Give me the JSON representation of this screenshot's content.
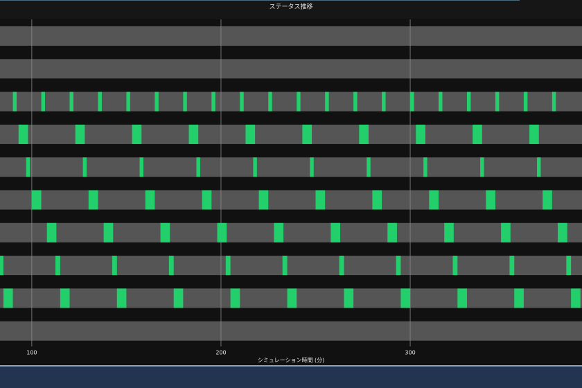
{
  "chart_data": {
    "type": "gantt",
    "title": "ステータス推移",
    "x_label": "シミュレーション時間 (分)",
    "xlim": [
      83.2,
      390.8
    ],
    "xticks": [
      100,
      200,
      300
    ],
    "grid": true,
    "bar_color": "#555555",
    "color": "#22cf6b",
    "rows": [
      {
        "segments": []
      },
      {
        "segments": []
      },
      {
        "segments": [
          [
            90,
            92
          ],
          [
            105,
            107
          ],
          [
            120,
            122
          ],
          [
            135,
            137
          ],
          [
            150,
            152
          ],
          [
            165,
            167
          ],
          [
            180,
            182
          ],
          [
            195,
            197
          ],
          [
            210,
            212
          ],
          [
            225,
            227
          ],
          [
            240,
            242
          ],
          [
            255,
            257
          ],
          [
            270,
            272
          ],
          [
            285,
            287
          ],
          [
            300,
            302
          ],
          [
            315,
            317
          ],
          [
            330,
            332
          ],
          [
            345,
            347
          ],
          [
            360,
            362
          ],
          [
            375,
            377
          ]
        ]
      },
      {
        "segments": [
          [
            93,
            98
          ],
          [
            123,
            128
          ],
          [
            153,
            158
          ],
          [
            183,
            188
          ],
          [
            213,
            218
          ],
          [
            243,
            248
          ],
          [
            273,
            278
          ],
          [
            303,
            308
          ],
          [
            333,
            338
          ],
          [
            363,
            368
          ]
        ]
      },
      {
        "segments": [
          [
            97,
            99
          ],
          [
            127,
            129
          ],
          [
            157,
            159
          ],
          [
            187,
            189
          ],
          [
            217,
            219
          ],
          [
            247,
            249
          ],
          [
            277,
            279
          ],
          [
            307,
            309
          ],
          [
            337,
            339
          ],
          [
            367,
            369
          ]
        ]
      },
      {
        "segments": [
          [
            100,
            105
          ],
          [
            130,
            135
          ],
          [
            160,
            165
          ],
          [
            190,
            195
          ],
          [
            220,
            225
          ],
          [
            250,
            255
          ],
          [
            280,
            285
          ],
          [
            310,
            315
          ],
          [
            340,
            345
          ],
          [
            370,
            375
          ]
        ]
      },
      {
        "segments": [
          [
            108,
            113
          ],
          [
            138,
            143
          ],
          [
            168,
            173
          ],
          [
            198,
            203
          ],
          [
            228,
            233
          ],
          [
            258,
            263
          ],
          [
            288,
            293
          ],
          [
            318,
            323
          ],
          [
            348,
            353
          ],
          [
            378,
            383
          ]
        ]
      },
      {
        "segments": [
          [
            82.5,
            85
          ],
          [
            112.5,
            115
          ],
          [
            142.5,
            145
          ],
          [
            172.5,
            175
          ],
          [
            202.5,
            205
          ],
          [
            232.5,
            235
          ],
          [
            262.5,
            265
          ],
          [
            292.5,
            295
          ],
          [
            322.5,
            325
          ],
          [
            352.5,
            355
          ],
          [
            382.5,
            385
          ]
        ]
      },
      {
        "segments": [
          [
            85,
            90
          ],
          [
            115,
            120
          ],
          [
            145,
            150
          ],
          [
            175,
            180
          ],
          [
            205,
            210
          ],
          [
            235,
            240
          ],
          [
            265,
            270
          ],
          [
            295,
            300
          ],
          [
            325,
            330
          ],
          [
            355,
            360
          ],
          [
            385,
            390
          ]
        ]
      },
      {
        "segments": []
      }
    ]
  }
}
